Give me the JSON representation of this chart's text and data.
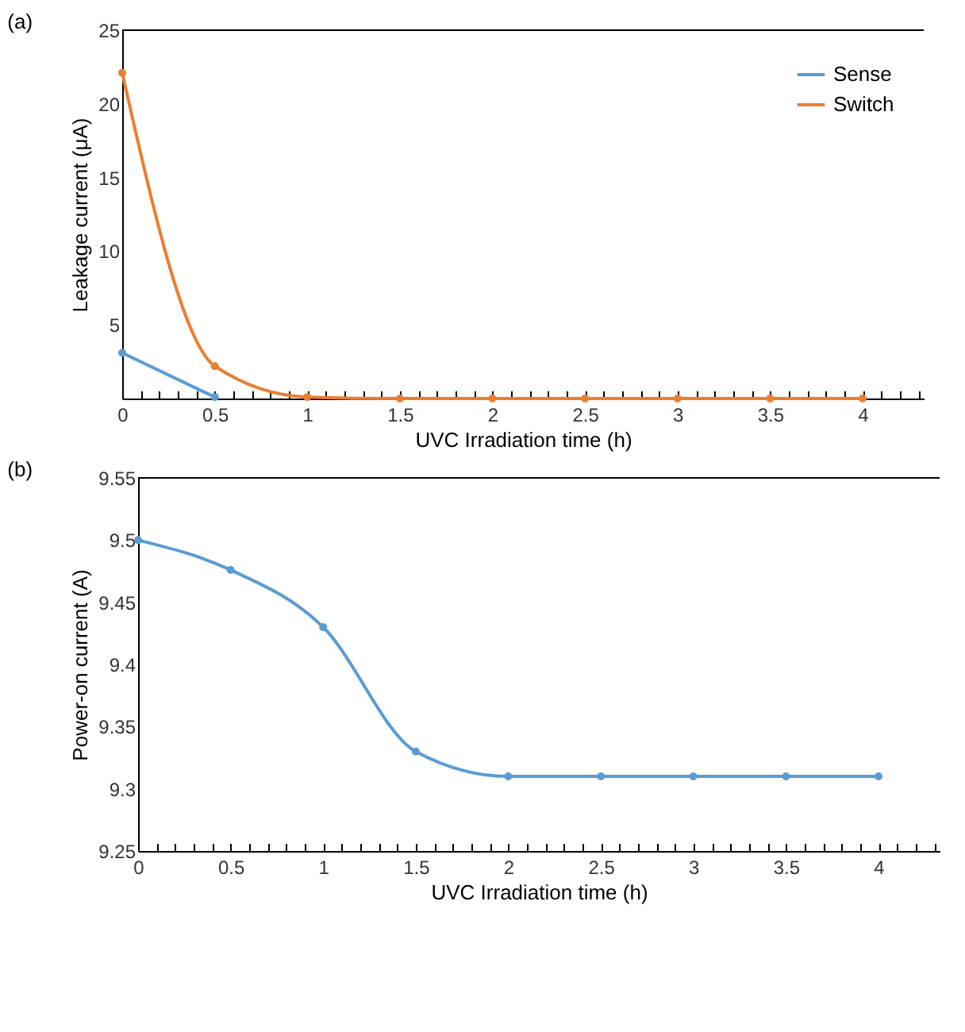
{
  "chart_data": [
    {
      "type": "line",
      "title": "(a)",
      "xlabel": "UVC Irradiation time (h)",
      "ylabel": "Leakage current (μA)",
      "x": [
        0,
        0.5,
        1,
        1.5,
        2,
        2.5,
        3,
        3.5,
        4
      ],
      "series": [
        {
          "name": "Sense",
          "color": "#5b9bd5",
          "values": [
            3.1,
            0.1,
            null,
            null,
            null,
            null,
            null,
            null,
            null
          ]
        },
        {
          "name": "Switch",
          "color": "#ed7d31",
          "values": [
            22.1,
            2.2,
            0.1,
            0,
            0,
            0,
            0,
            0,
            0
          ]
        }
      ],
      "xlim": [
        0,
        4.33
      ],
      "xticks": [
        0,
        {
          "value": 0.1,
          "label": null
        },
        {
          "value": 0.2,
          "label": null
        },
        {
          "value": 0.3,
          "label": null
        },
        {
          "value": 0.4,
          "label": null
        },
        0.5,
        {
          "value": 0.6,
          "label": null
        },
        {
          "value": 0.7,
          "label": null
        },
        {
          "value": 0.8,
          "label": null
        },
        {
          "value": 0.9,
          "label": null
        },
        1,
        {
          "value": 1.1,
          "label": null
        },
        {
          "value": 1.2,
          "label": null
        },
        {
          "value": 1.3,
          "label": null
        },
        {
          "value": 1.4,
          "label": null
        },
        1.5,
        {
          "value": 1.6,
          "label": null
        },
        {
          "value": 1.7,
          "label": null
        },
        {
          "value": 1.8,
          "label": null
        },
        {
          "value": 1.9,
          "label": null
        },
        2,
        {
          "value": 2.1,
          "label": null
        },
        {
          "value": 2.2,
          "label": null
        },
        {
          "value": 2.3,
          "label": null
        },
        {
          "value": 2.4,
          "label": null
        },
        2.5,
        {
          "value": 2.6,
          "label": null
        },
        {
          "value": 2.7,
          "label": null
        },
        {
          "value": 2.8,
          "label": null
        },
        {
          "value": 2.9,
          "label": null
        },
        3,
        {
          "value": 3.1,
          "label": null
        },
        {
          "value": 3.2,
          "label": null
        },
        {
          "value": 3.3,
          "label": null
        },
        {
          "value": 3.4,
          "label": null
        },
        3.5,
        {
          "value": 3.6,
          "label": null
        },
        {
          "value": 3.7,
          "label": null
        },
        {
          "value": 3.8,
          "label": null
        },
        {
          "value": 3.9,
          "label": null
        },
        4,
        {
          "value": 4.1,
          "label": null
        },
        {
          "value": 4.2,
          "label": null
        },
        {
          "value": 4.3,
          "label": null
        }
      ],
      "ylim": [
        0,
        25
      ],
      "yticks": [
        5,
        10,
        15,
        20,
        25
      ],
      "legend": "top right",
      "marker": "circle",
      "grid": false
    },
    {
      "type": "line",
      "title": "(b)",
      "xlabel": "UVC Irradiation time (h)",
      "ylabel": "Power-on current  (A)",
      "x": [
        0,
        0.5,
        1,
        1.5,
        2,
        2.5,
        3,
        3.5,
        4
      ],
      "series": [
        {
          "color": "#5b9bd5",
          "values": [
            9.5,
            9.476,
            9.43,
            9.33,
            9.31,
            9.31,
            9.31,
            9.31,
            9.31
          ]
        }
      ],
      "xlim": [
        0,
        4.33
      ],
      "xticks": [
        0,
        {
          "value": 0.1,
          "label": null
        },
        {
          "value": 0.2,
          "label": null
        },
        {
          "value": 0.3,
          "label": null
        },
        {
          "value": 0.4,
          "label": null
        },
        0.5,
        {
          "value": 0.6,
          "label": null
        },
        {
          "value": 0.7,
          "label": null
        },
        {
          "value": 0.8,
          "label": null
        },
        {
          "value": 0.9,
          "label": null
        },
        1,
        {
          "value": 1.1,
          "label": null
        },
        {
          "value": 1.2,
          "label": null
        },
        {
          "value": 1.3,
          "label": null
        },
        {
          "value": 1.4,
          "label": null
        },
        1.5,
        {
          "value": 1.6,
          "label": null
        },
        {
          "value": 1.7,
          "label": null
        },
        {
          "value": 1.8,
          "label": null
        },
        {
          "value": 1.9,
          "label": null
        },
        2,
        {
          "value": 2.1,
          "label": null
        },
        {
          "value": 2.2,
          "label": null
        },
        {
          "value": 2.3,
          "label": null
        },
        {
          "value": 2.4,
          "label": null
        },
        2.5,
        {
          "value": 2.6,
          "label": null
        },
        {
          "value": 2.7,
          "label": null
        },
        {
          "value": 2.8,
          "label": null
        },
        {
          "value": 2.9,
          "label": null
        },
        3,
        {
          "value": 3.1,
          "label": null
        },
        {
          "value": 3.2,
          "label": null
        },
        {
          "value": 3.3,
          "label": null
        },
        {
          "value": 3.4,
          "label": null
        },
        3.5,
        {
          "value": 3.6,
          "label": null
        },
        {
          "value": 3.7,
          "label": null
        },
        {
          "value": 3.8,
          "label": null
        },
        {
          "value": 3.9,
          "label": null
        },
        4,
        {
          "value": 4.1,
          "label": null
        },
        {
          "value": 4.2,
          "label": null
        },
        {
          "value": 4.3,
          "label": null
        }
      ],
      "ylim": [
        9.25,
        9.55
      ],
      "yticks": [
        9.25,
        9.3,
        9.35,
        9.4,
        9.45,
        9.5,
        9.55
      ],
      "marker": "circle",
      "grid": false
    }
  ]
}
